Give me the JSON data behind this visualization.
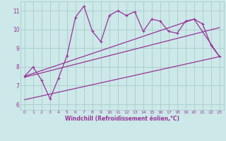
{
  "xlabel": "Windchill (Refroidissement éolien,°C)",
  "xlim": [
    -0.5,
    23.5
  ],
  "ylim": [
    5.7,
    11.5
  ],
  "xticks": [
    0,
    1,
    2,
    3,
    4,
    5,
    6,
    7,
    8,
    9,
    10,
    11,
    12,
    13,
    14,
    15,
    16,
    17,
    18,
    19,
    20,
    21,
    22,
    23
  ],
  "yticks": [
    6,
    7,
    8,
    9,
    10,
    11
  ],
  "bg_color": "#cce8e8",
  "line_color": "#993399",
  "grid_color": "#aacccc",
  "main_line_x": [
    0,
    1,
    2,
    3,
    4,
    5,
    6,
    7,
    8,
    9,
    10,
    11,
    12,
    13,
    14,
    15,
    16,
    17,
    18,
    19,
    20,
    21,
    22,
    23
  ],
  "main_line_y": [
    7.5,
    8.0,
    7.3,
    6.3,
    7.4,
    8.6,
    10.65,
    11.25,
    9.9,
    9.35,
    10.75,
    11.0,
    10.75,
    10.95,
    9.9,
    10.55,
    10.45,
    9.9,
    9.8,
    10.45,
    10.55,
    10.3,
    9.15,
    8.55
  ],
  "lower_line_x": [
    0,
    23
  ],
  "lower_line_y": [
    6.25,
    8.55
  ],
  "upper_line_x": [
    0,
    20,
    23
  ],
  "upper_line_y": [
    7.5,
    10.55,
    8.55
  ],
  "mid_line_x": [
    0,
    23
  ],
  "mid_line_y": [
    7.45,
    10.1
  ]
}
